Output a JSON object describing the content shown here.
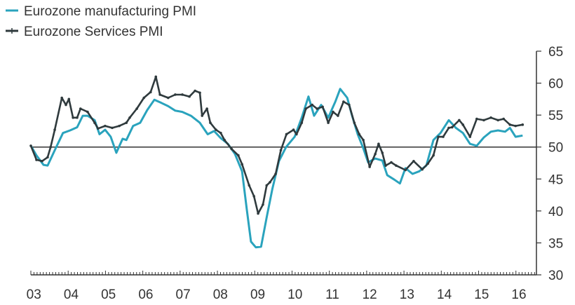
{
  "chart_data": {
    "type": "line",
    "title": "",
    "xlabel": "",
    "ylabel": "",
    "xlim": [
      2003.0,
      2016.55
    ],
    "ylim": [
      30,
      65
    ],
    "yticks": [
      65,
      60,
      55,
      50,
      45,
      40,
      35,
      30
    ],
    "xtick_labels": [
      {
        "year": 2003,
        "label": "03"
      },
      {
        "year": 2004,
        "label": "04"
      },
      {
        "year": 2005,
        "label": "05"
      },
      {
        "year": 2006,
        "label": "06"
      },
      {
        "year": 2007,
        "label": "07"
      },
      {
        "year": 2008,
        "label": "08"
      },
      {
        "year": 2009,
        "label": "09"
      },
      {
        "year": 2010,
        "label": "10"
      },
      {
        "year": 2011,
        "label": "11"
      },
      {
        "year": 2012,
        "label": "12"
      },
      {
        "year": 2013,
        "label": "13"
      },
      {
        "year": 2014,
        "label": "14"
      },
      {
        "year": 2015,
        "label": "15"
      },
      {
        "year": 2016,
        "label": "16"
      }
    ],
    "reference_line": 50,
    "legend_position": "top-left",
    "colors": {
      "manufacturing": "#2aa3bd",
      "services": "#2f3a3d",
      "axis": "#333333"
    },
    "series": [
      {
        "name": "Eurozone manufacturing PMI",
        "color": "#2aa3bd",
        "points": [
          [
            2003.0,
            50.2
          ],
          [
            2003.15,
            48.7
          ],
          [
            2003.34,
            47.2
          ],
          [
            2003.45,
            47.1
          ],
          [
            2003.64,
            49.5
          ],
          [
            2003.86,
            52.2
          ],
          [
            2004.05,
            52.6
          ],
          [
            2004.24,
            53.1
          ],
          [
            2004.39,
            54.9
          ],
          [
            2004.52,
            54.9
          ],
          [
            2004.71,
            54.2
          ],
          [
            2004.84,
            52.0
          ],
          [
            2004.99,
            52.7
          ],
          [
            2005.14,
            51.6
          ],
          [
            2005.29,
            49.1
          ],
          [
            2005.46,
            51.3
          ],
          [
            2005.56,
            51.1
          ],
          [
            2005.74,
            53.3
          ],
          [
            2005.93,
            53.8
          ],
          [
            2006.12,
            55.8
          ],
          [
            2006.31,
            57.4
          ],
          [
            2006.5,
            56.9
          ],
          [
            2006.68,
            56.4
          ],
          [
            2006.87,
            55.7
          ],
          [
            2007.06,
            55.5
          ],
          [
            2007.29,
            54.9
          ],
          [
            2007.53,
            53.8
          ],
          [
            2007.74,
            52.0
          ],
          [
            2007.91,
            52.5
          ],
          [
            2008.09,
            51.4
          ],
          [
            2008.28,
            50.5
          ],
          [
            2008.47,
            48.9
          ],
          [
            2008.66,
            46.2
          ],
          [
            2008.79,
            40.1
          ],
          [
            2008.9,
            35.2
          ],
          [
            2009.03,
            34.3
          ],
          [
            2009.17,
            34.4
          ],
          [
            2009.32,
            39.0
          ],
          [
            2009.47,
            43.4
          ],
          [
            2009.65,
            47.8
          ],
          [
            2009.84,
            50.0
          ],
          [
            2010.07,
            51.6
          ],
          [
            2010.26,
            54.6
          ],
          [
            2010.44,
            57.9
          ],
          [
            2010.59,
            54.9
          ],
          [
            2010.78,
            56.6
          ],
          [
            2010.97,
            54.6
          ],
          [
            2011.16,
            57.1
          ],
          [
            2011.29,
            59.1
          ],
          [
            2011.48,
            57.7
          ],
          [
            2011.61,
            54.9
          ],
          [
            2011.76,
            52.0
          ],
          [
            2011.91,
            49.8
          ],
          [
            2012.04,
            47.6
          ],
          [
            2012.23,
            48.2
          ],
          [
            2012.42,
            47.9
          ],
          [
            2012.55,
            45.6
          ],
          [
            2012.74,
            44.9
          ],
          [
            2012.89,
            44.3
          ],
          [
            2013.04,
            46.7
          ],
          [
            2013.23,
            45.8
          ],
          [
            2013.41,
            46.2
          ],
          [
            2013.6,
            47.1
          ],
          [
            2013.79,
            51.1
          ],
          [
            2013.98,
            52.2
          ],
          [
            2014.2,
            54.2
          ],
          [
            2014.39,
            53.0
          ],
          [
            2014.58,
            52.2
          ],
          [
            2014.77,
            50.5
          ],
          [
            2014.95,
            50.2
          ],
          [
            2015.14,
            51.5
          ],
          [
            2015.33,
            52.4
          ],
          [
            2015.52,
            52.6
          ],
          [
            2015.71,
            52.4
          ],
          [
            2015.84,
            53.0
          ],
          [
            2015.99,
            51.6
          ],
          [
            2016.18,
            51.8
          ]
        ]
      },
      {
        "name": "Eurozone Services PMI",
        "color": "#2f3a3d",
        "points": [
          [
            2003.0,
            50.2
          ],
          [
            2003.15,
            48.0
          ],
          [
            2003.3,
            47.8
          ],
          [
            2003.45,
            48.4
          ],
          [
            2003.53,
            50.0
          ],
          [
            2003.64,
            52.7
          ],
          [
            2003.83,
            57.7
          ],
          [
            2003.94,
            56.6
          ],
          [
            2004.02,
            57.5
          ],
          [
            2004.13,
            54.6
          ],
          [
            2004.24,
            54.6
          ],
          [
            2004.33,
            56.0
          ],
          [
            2004.52,
            55.5
          ],
          [
            2004.71,
            53.8
          ],
          [
            2004.8,
            52.9
          ],
          [
            2004.99,
            53.3
          ],
          [
            2005.18,
            53.0
          ],
          [
            2005.37,
            53.3
          ],
          [
            2005.56,
            53.8
          ],
          [
            2005.65,
            54.6
          ],
          [
            2005.84,
            56.0
          ],
          [
            2006.03,
            57.7
          ],
          [
            2006.21,
            58.6
          ],
          [
            2006.35,
            61.0
          ],
          [
            2006.46,
            58.2
          ],
          [
            2006.68,
            57.7
          ],
          [
            2006.87,
            58.2
          ],
          [
            2007.06,
            58.2
          ],
          [
            2007.25,
            57.9
          ],
          [
            2007.4,
            58.8
          ],
          [
            2007.53,
            58.5
          ],
          [
            2007.59,
            54.9
          ],
          [
            2007.72,
            56.0
          ],
          [
            2007.81,
            53.8
          ],
          [
            2007.96,
            52.7
          ],
          [
            2008.09,
            52.2
          ],
          [
            2008.19,
            51.1
          ],
          [
            2008.38,
            49.7
          ],
          [
            2008.56,
            48.7
          ],
          [
            2008.66,
            47.3
          ],
          [
            2008.85,
            44.0
          ],
          [
            2008.98,
            42.3
          ],
          [
            2009.09,
            39.6
          ],
          [
            2009.22,
            41.0
          ],
          [
            2009.32,
            44.0
          ],
          [
            2009.41,
            44.5
          ],
          [
            2009.56,
            45.8
          ],
          [
            2009.7,
            49.5
          ],
          [
            2009.85,
            52.0
          ],
          [
            2010.04,
            52.7
          ],
          [
            2010.12,
            52.0
          ],
          [
            2010.26,
            53.8
          ],
          [
            2010.37,
            56.0
          ],
          [
            2010.54,
            56.6
          ],
          [
            2010.67,
            56.0
          ],
          [
            2010.82,
            56.3
          ],
          [
            2010.97,
            53.8
          ],
          [
            2011.1,
            55.5
          ],
          [
            2011.23,
            54.9
          ],
          [
            2011.38,
            57.1
          ],
          [
            2011.53,
            56.6
          ],
          [
            2011.67,
            53.8
          ],
          [
            2011.8,
            52.0
          ],
          [
            2011.91,
            51.1
          ],
          [
            2012.08,
            46.9
          ],
          [
            2012.23,
            48.9
          ],
          [
            2012.32,
            50.5
          ],
          [
            2012.42,
            49.1
          ],
          [
            2012.51,
            47.1
          ],
          [
            2012.66,
            47.6
          ],
          [
            2012.79,
            47.1
          ],
          [
            2013.04,
            46.4
          ],
          [
            2013.26,
            47.8
          ],
          [
            2013.49,
            46.5
          ],
          [
            2013.64,
            47.4
          ],
          [
            2013.79,
            48.7
          ],
          [
            2013.92,
            51.6
          ],
          [
            2014.05,
            51.6
          ],
          [
            2014.2,
            53.0
          ],
          [
            2014.29,
            53.1
          ],
          [
            2014.48,
            54.2
          ],
          [
            2014.58,
            53.5
          ],
          [
            2014.77,
            51.6
          ],
          [
            2014.95,
            54.4
          ],
          [
            2015.14,
            54.2
          ],
          [
            2015.33,
            54.6
          ],
          [
            2015.52,
            54.2
          ],
          [
            2015.67,
            54.4
          ],
          [
            2015.84,
            53.5
          ],
          [
            2015.99,
            53.3
          ],
          [
            2016.18,
            53.5
          ]
        ]
      }
    ]
  }
}
